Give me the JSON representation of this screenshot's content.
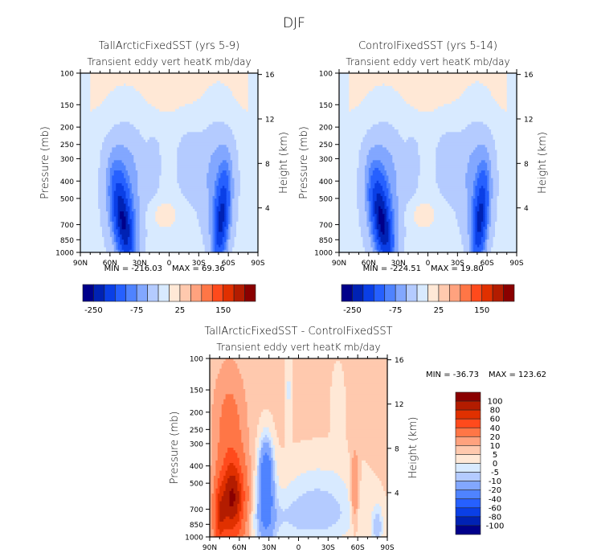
{
  "figure": {
    "main_title": "DJF"
  },
  "chart_data": [
    {
      "id": "tall",
      "type": "heatmap",
      "title": "TallArcticFixedSST (yrs 5-9)",
      "subtitle": "Transient eddy vert heatK mb/day",
      "xlabel": "",
      "ylabel": "Pressure (mb)",
      "y2label": "Height (km)",
      "x_ticks": [
        "90N",
        "60N",
        "30N",
        "0",
        "30S",
        "60S",
        "90S"
      ],
      "x_tick_values": [
        90,
        60,
        30,
        0,
        -30,
        -60,
        -90
      ],
      "y_ticks": [
        100,
        150,
        200,
        250,
        300,
        400,
        500,
        700,
        850,
        1000
      ],
      "y2_ticks": [
        16,
        12,
        8,
        4
      ],
      "xlim": [
        90,
        -90
      ],
      "ylim": [
        1000,
        100
      ],
      "yscale": "log",
      "min_label": "MIN = -216.03",
      "max_label": "MAX = 69.36",
      "min": -216.03,
      "max": 69.36,
      "colorbar": {
        "orientation": "horizontal",
        "tick_labels": [
          "-250",
          "-75",
          "25",
          "150"
        ],
        "levels": [
          -250,
          -200,
          -150,
          -100,
          -75,
          -50,
          -25,
          0,
          25,
          50,
          75,
          100,
          150,
          200,
          250
        ],
        "colors": [
          "#00008a",
          "#0022b4",
          "#0a3fe6",
          "#2660ff",
          "#4f83ff",
          "#82a7ff",
          "#b4cbff",
          "#d8eaff",
          "#ffe8d6",
          "#ffc9ae",
          "#ffa27e",
          "#ff7646",
          "#ff4a1c",
          "#e03000",
          "#b31c00",
          "#8a0000"
        ]
      },
      "features": [
        {
          "kind": "neg-cell",
          "lat": 47,
          "p": 650,
          "peak": -216
        },
        {
          "kind": "neg-cell",
          "lat": -53,
          "p": 650,
          "peak": -160
        },
        {
          "kind": "pos-stratosphere",
          "p_top": 100,
          "p_bottom": 200,
          "value": 10
        },
        {
          "kind": "pos-tropical-lower",
          "lat": 5,
          "p": 600,
          "value": 10
        }
      ]
    },
    {
      "id": "control",
      "type": "heatmap",
      "title": "ControlFixedSST (yrs 5-14)",
      "subtitle": "Transient eddy vert heatK mb/day",
      "xlabel": "",
      "ylabel": "Pressure (mb)",
      "y2label": "Height (km)",
      "x_ticks": [
        "90N",
        "60N",
        "30N",
        "0",
        "30S",
        "60S",
        "90S"
      ],
      "x_tick_values": [
        90,
        60,
        30,
        0,
        -30,
        -60,
        -90
      ],
      "y_ticks": [
        100,
        150,
        200,
        250,
        300,
        400,
        500,
        700,
        850,
        1000
      ],
      "y2_ticks": [
        16,
        12,
        8,
        4
      ],
      "xlim": [
        90,
        -90
      ],
      "ylim": [
        1000,
        100
      ],
      "yscale": "log",
      "min_label": "MIN = -224.51",
      "max_label": "MAX = 19.80",
      "min": -224.51,
      "max": 19.8,
      "colorbar": {
        "orientation": "horizontal",
        "tick_labels": [
          "-250",
          "-75",
          "25",
          "150"
        ],
        "levels": [
          -250,
          -200,
          -150,
          -100,
          -75,
          -50,
          -25,
          0,
          25,
          50,
          75,
          100,
          150,
          200,
          250
        ],
        "colors": [
          "#00008a",
          "#0022b4",
          "#0a3fe6",
          "#2660ff",
          "#4f83ff",
          "#82a7ff",
          "#b4cbff",
          "#d8eaff",
          "#ffe8d6",
          "#ffc9ae",
          "#ffa27e",
          "#ff7646",
          "#ff4a1c",
          "#e03000",
          "#b31c00",
          "#8a0000"
        ]
      },
      "features": [
        {
          "kind": "neg-cell",
          "lat": 47,
          "p": 650,
          "peak": -224
        },
        {
          "kind": "neg-cell",
          "lat": -53,
          "p": 650,
          "peak": -160
        },
        {
          "kind": "pos-stratosphere",
          "p_top": 100,
          "p_bottom": 200,
          "value": 10
        },
        {
          "kind": "pos-tropical-lower",
          "lat": 5,
          "p": 600,
          "value": 10
        }
      ]
    },
    {
      "id": "diff",
      "type": "heatmap",
      "title": "TallArcticFixedSST - ControlFixedSST",
      "subtitle": "Transient eddy vert heatK mb/day",
      "xlabel": "",
      "ylabel": "Pressure (mb)",
      "y2label": "Height (km)",
      "x_ticks": [
        "90N",
        "60N",
        "30N",
        "0",
        "30S",
        "60S",
        "90S"
      ],
      "x_tick_values": [
        90,
        60,
        30,
        0,
        -30,
        -60,
        -90
      ],
      "y_ticks": [
        100,
        150,
        200,
        250,
        300,
        400,
        500,
        700,
        850,
        1000
      ],
      "y2_ticks": [
        16,
        12,
        8,
        4
      ],
      "xlim": [
        90,
        -90
      ],
      "ylim": [
        1000,
        100
      ],
      "yscale": "log",
      "min_label": "MIN = -36.73",
      "max_label": "MAX = 123.62",
      "min": -36.73,
      "max": 123.62,
      "colorbar": {
        "orientation": "vertical",
        "tick_labels": [
          "100",
          "80",
          "60",
          "40",
          "20",
          "10",
          "5",
          "0",
          "-5",
          "-10",
          "-20",
          "-40",
          "-60",
          "-80",
          "-100"
        ],
        "levels": [
          -100,
          -80,
          -60,
          -40,
          -20,
          -10,
          -5,
          0,
          5,
          10,
          20,
          40,
          60,
          80,
          100
        ],
        "colors": [
          "#00008a",
          "#0022b4",
          "#0a3fe6",
          "#2660ff",
          "#4f83ff",
          "#82a7ff",
          "#b4cbff",
          "#d8eaff",
          "#ffe8d6",
          "#ffc9ae",
          "#ffa27e",
          "#ff7646",
          "#ff4a1c",
          "#e03000",
          "#b31c00",
          "#8a0000"
        ]
      },
      "features": [
        {
          "kind": "pos-cell",
          "lat": 68,
          "p": 600,
          "peak": 123.62
        },
        {
          "kind": "neg-cell",
          "lat": 33,
          "p": 450,
          "peak": -36.73
        },
        {
          "kind": "pos-cell",
          "lat": -57,
          "p": 550,
          "peak": 15
        }
      ]
    }
  ]
}
